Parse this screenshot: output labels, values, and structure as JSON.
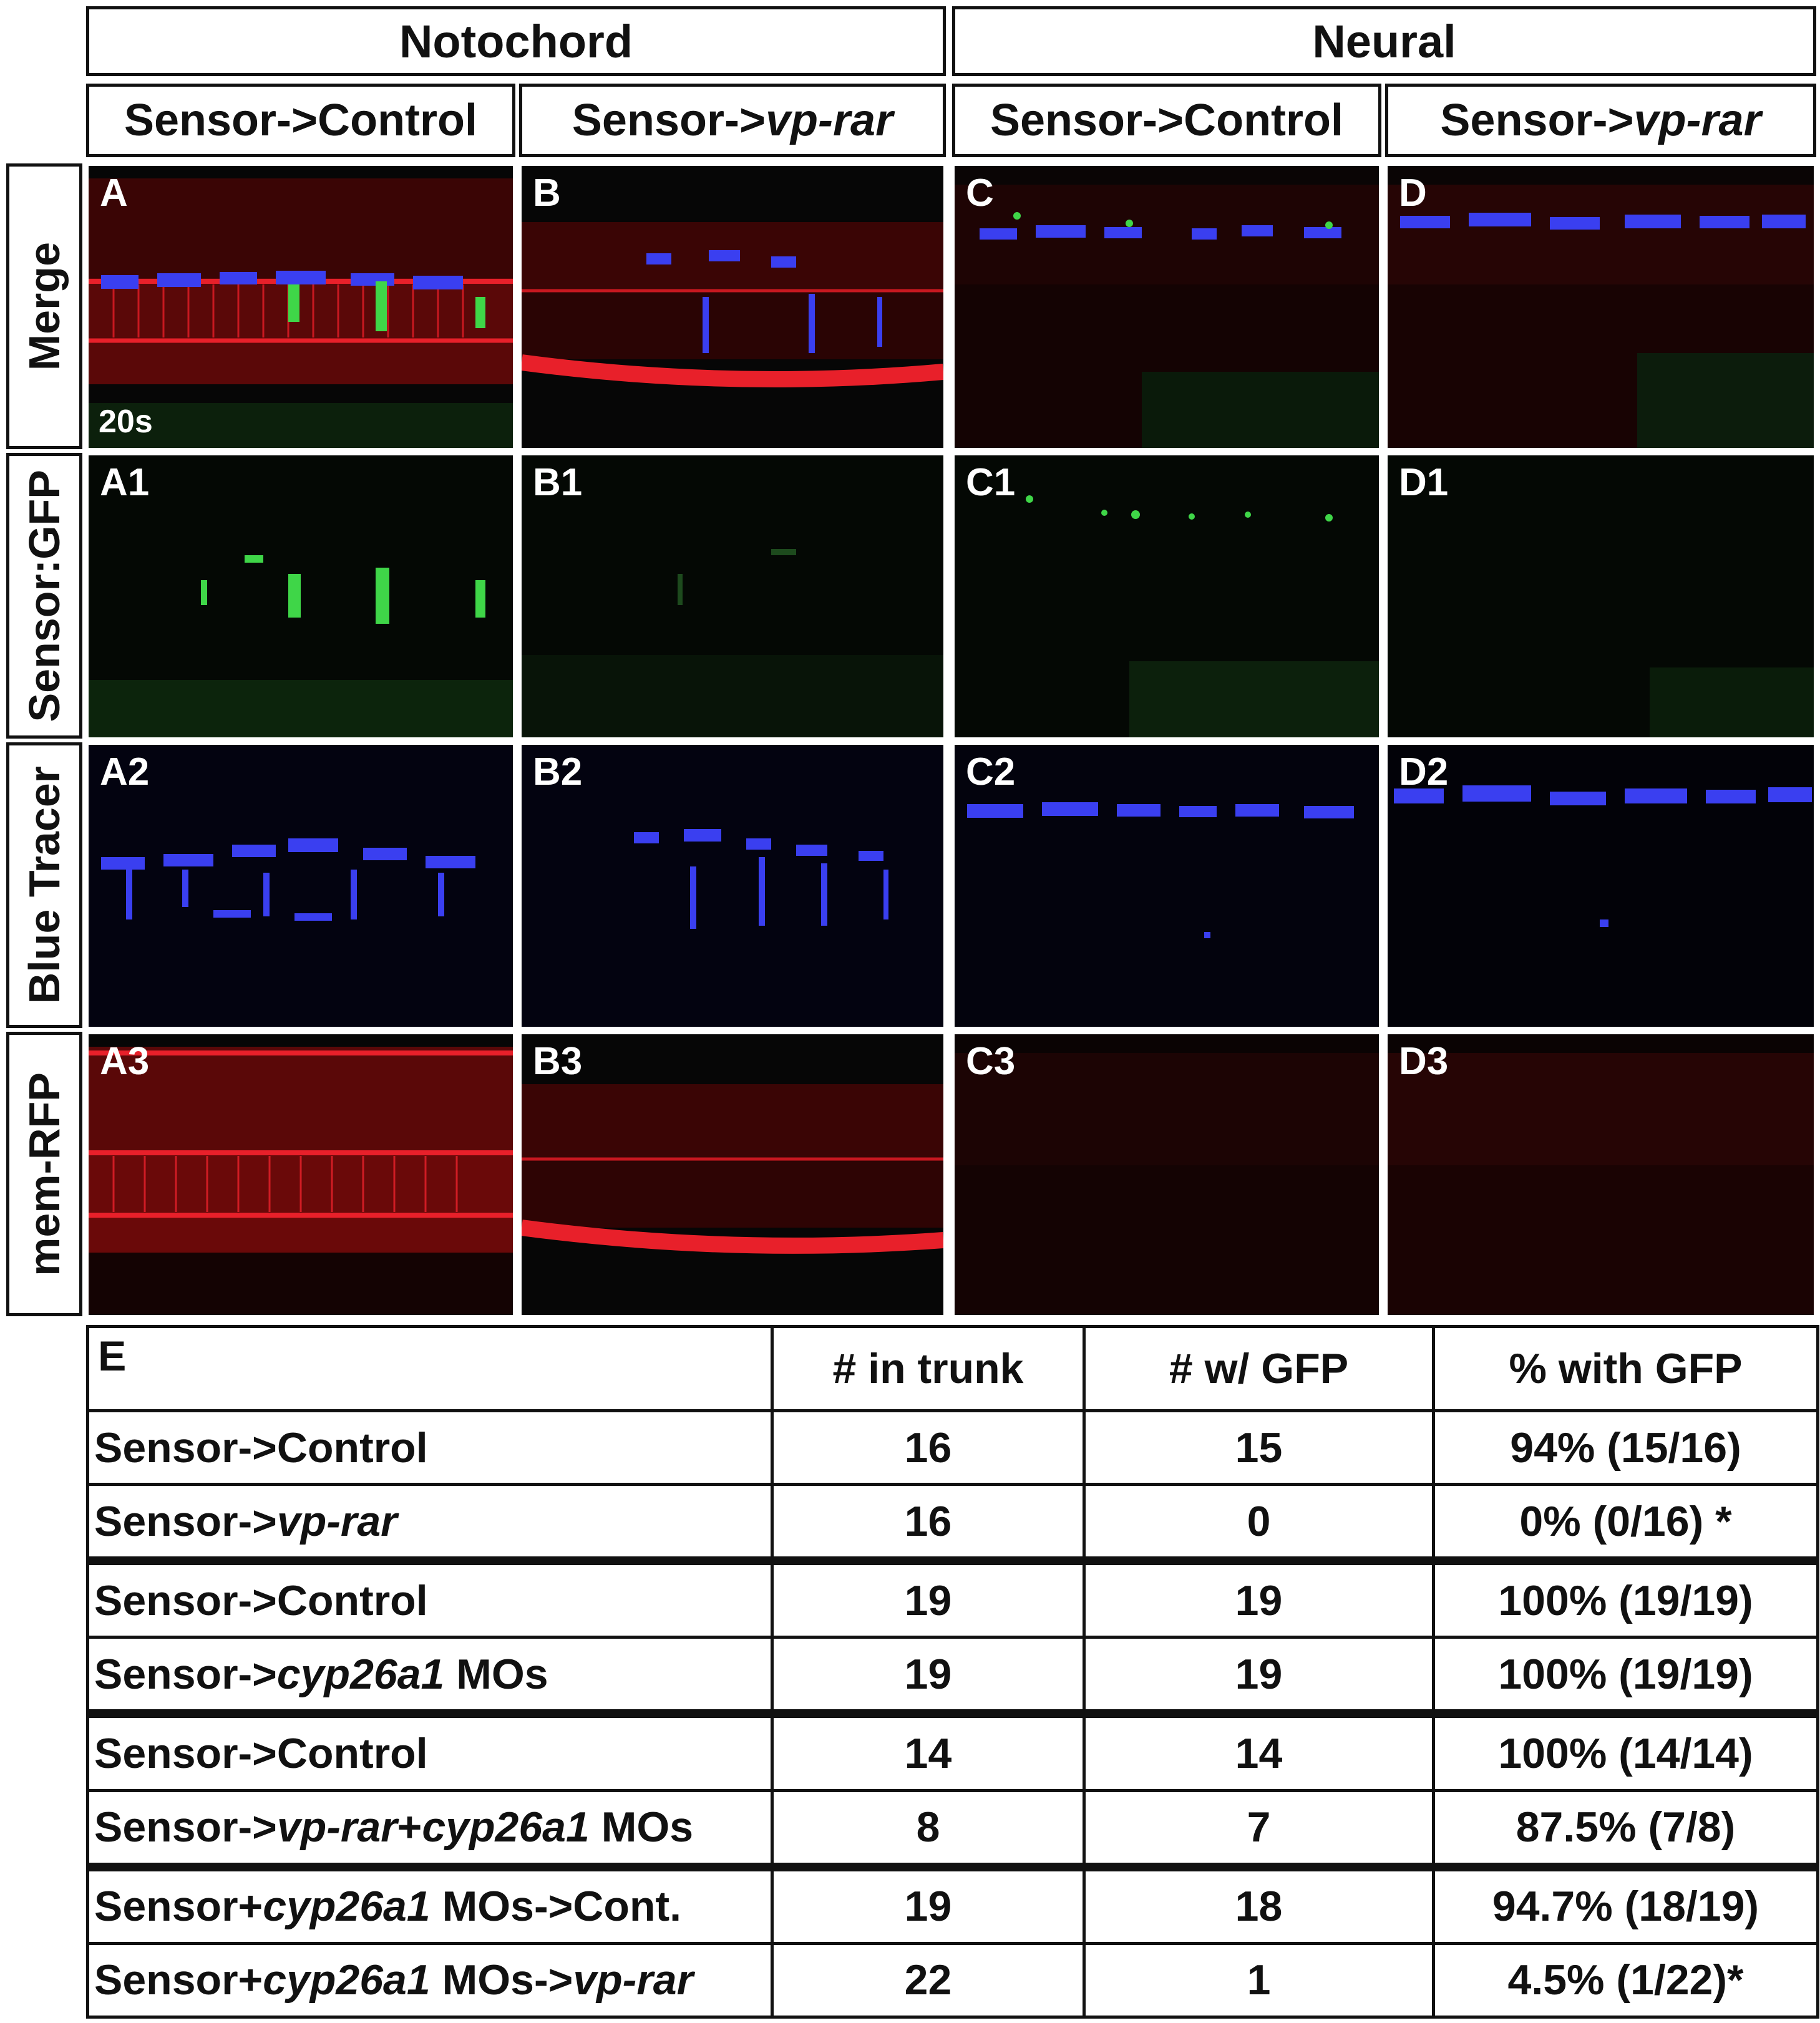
{
  "groups": [
    "Notochord",
    "Neural"
  ],
  "columns": [
    {
      "pre": "Sensor->",
      "ital": ""
    },
    {
      "pre": "Sensor->",
      "ital": "vp-rar"
    },
    {
      "pre": "Sensor->",
      "ital": ""
    },
    {
      "pre": "Sensor->",
      "ital": "vp-rar"
    }
  ],
  "column_plain": [
    "Control",
    "",
    "Control",
    ""
  ],
  "rows": [
    "Merge",
    "Sensor:GFP",
    "Blue Tracer",
    "mem-RFP"
  ],
  "panels": [
    [
      "A",
      "B",
      "C",
      "D"
    ],
    [
      "A1",
      "B1",
      "C1",
      "D1"
    ],
    [
      "A2",
      "B2",
      "C2",
      "D2"
    ],
    [
      "A3",
      "B3",
      "C3",
      "D3"
    ]
  ],
  "stage_label": "20s",
  "table": {
    "corner": "E",
    "headers": [
      "# in trunk",
      "# w/ GFP",
      "% with GFP"
    ],
    "rows": [
      {
        "parts": [
          [
            "Sensor->Control",
            false
          ]
        ],
        "trunk": "16",
        "gfp": "15",
        "pct": "94% (15/16)"
      },
      {
        "parts": [
          [
            "Sensor->",
            false
          ],
          [
            "vp-rar",
            true
          ]
        ],
        "trunk": "16",
        "gfp": "0",
        "pct": "0% (0/16) *"
      },
      {
        "parts": [
          [
            "Sensor->Control",
            false
          ]
        ],
        "trunk": "19",
        "gfp": "19",
        "pct": "100% (19/19)"
      },
      {
        "parts": [
          [
            "Sensor->",
            false
          ],
          [
            "cyp26a1",
            true
          ],
          [
            " MOs",
            false
          ]
        ],
        "trunk": "19",
        "gfp": "19",
        "pct": "100% (19/19)"
      },
      {
        "parts": [
          [
            "Sensor->Control",
            false
          ]
        ],
        "trunk": "14",
        "gfp": "14",
        "pct": "100% (14/14)"
      },
      {
        "parts": [
          [
            "Sensor->",
            false
          ],
          [
            "vp-rar",
            true
          ],
          [
            "+",
            false
          ],
          [
            "cyp26a1",
            true
          ],
          [
            " MOs",
            false
          ]
        ],
        "trunk": "8",
        "gfp": "7",
        "pct": "87.5% (7/8)"
      },
      {
        "parts": [
          [
            "Sensor+",
            false
          ],
          [
            "cyp26a1",
            true
          ],
          [
            " MOs->Cont.",
            false
          ]
        ],
        "trunk": "19",
        "gfp": "18",
        "pct": "94.7% (18/19)"
      },
      {
        "parts": [
          [
            "Sensor+",
            false
          ],
          [
            "cyp26a1",
            true
          ],
          [
            " MOs->",
            false
          ],
          [
            "vp-rar",
            true
          ]
        ],
        "trunk": "22",
        "gfp": "1",
        "pct": "4.5% (1/22)*"
      }
    ],
    "thick_before": [
      2,
      4,
      6
    ]
  },
  "colors": {
    "red": "#e8202a",
    "green": "#3fd648",
    "blue": "#3a3ff0",
    "bg": "#050505"
  }
}
